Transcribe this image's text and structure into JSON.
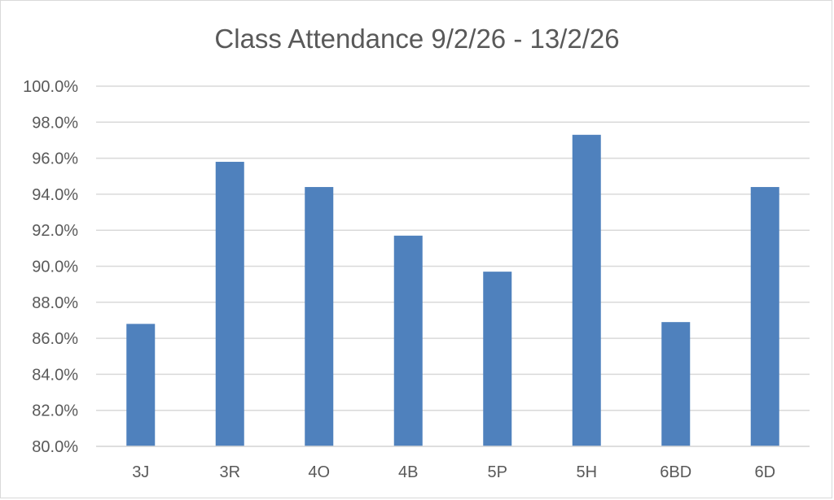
{
  "chart_data": {
    "type": "bar",
    "title": "Class Attendance 9/2/26 - 13/2/26",
    "xlabel": "",
    "ylabel": "",
    "categories": [
      "3J",
      "3R",
      "4O",
      "4B",
      "5P",
      "5H",
      "6BD",
      "6D"
    ],
    "values": [
      86.8,
      95.8,
      94.4,
      91.7,
      89.7,
      97.3,
      86.9,
      94.4
    ],
    "ylim": [
      80,
      100
    ],
    "yticks": [
      "80.0%",
      "82.0%",
      "84.0%",
      "86.0%",
      "88.0%",
      "90.0%",
      "92.0%",
      "94.0%",
      "96.0%",
      "98.0%",
      "100.0%"
    ],
    "grid": true,
    "legend": "none",
    "bar_color": "#4f81bd",
    "grid_color": "#d9d9d9",
    "text_color": "#595959"
  }
}
